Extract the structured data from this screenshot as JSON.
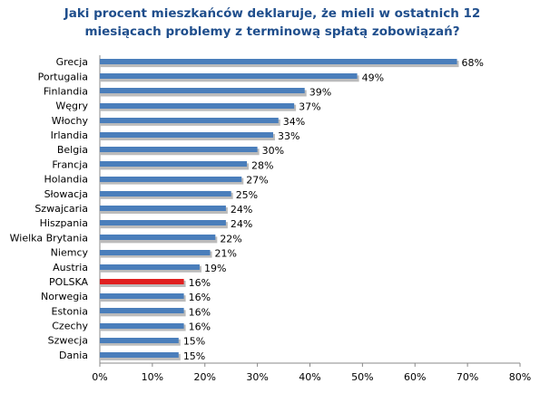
{
  "chart_data": {
    "type": "bar",
    "orientation": "horizontal",
    "title": [
      "Jaki procent mieszkańców deklaruje, że mieli w ostatnich 12",
      "miesiącach problemy z terminową spłatą zobowiązań?"
    ],
    "categories": [
      "Grecja",
      "Portugalia",
      "Finlandia",
      "Węgry",
      "Włochy",
      "Irlandia",
      "Belgia",
      "Francja",
      "Holandia",
      "Słowacja",
      "Szwajcaria",
      "Hiszpania",
      "Wielka Brytania",
      "Niemcy",
      "Austria",
      "POLSKA",
      "Norwegia",
      "Estonia",
      "Czechy",
      "Szwecja",
      "Dania"
    ],
    "values": [
      68,
      49,
      39,
      37,
      34,
      33,
      30,
      28,
      27,
      25,
      24,
      24,
      22,
      21,
      19,
      16,
      16,
      16,
      16,
      15,
      15
    ],
    "value_labels": [
      "68%",
      "49%",
      "39%",
      "37%",
      "34%",
      "33%",
      "30%",
      "28%",
      "27%",
      "25%",
      "24%",
      "24%",
      "22%",
      "21%",
      "19%",
      "16%",
      "16%",
      "16%",
      "16%",
      "15%",
      "15%"
    ],
    "colors": [
      "#4a7ebb",
      "#4a7ebb",
      "#4a7ebb",
      "#4a7ebb",
      "#4a7ebb",
      "#4a7ebb",
      "#4a7ebb",
      "#4a7ebb",
      "#4a7ebb",
      "#4a7ebb",
      "#4a7ebb",
      "#4a7ebb",
      "#4a7ebb",
      "#4a7ebb",
      "#4a7ebb",
      "#e02020",
      "#4a7ebb",
      "#4a7ebb",
      "#4a7ebb",
      "#4a7ebb",
      "#4a7ebb"
    ],
    "xlim": [
      0,
      80
    ],
    "xticks": [
      {
        "value": 0,
        "label": "0%"
      },
      {
        "value": 10,
        "label": "10%"
      },
      {
        "value": 20,
        "label": "20%"
      },
      {
        "value": 30,
        "label": "30%"
      },
      {
        "value": 40,
        "label": "40%"
      },
      {
        "value": 50,
        "label": "50%"
      },
      {
        "value": 60,
        "label": "60%"
      },
      {
        "value": 70,
        "label": "70%"
      },
      {
        "value": 80,
        "label": "80%"
      }
    ]
  }
}
